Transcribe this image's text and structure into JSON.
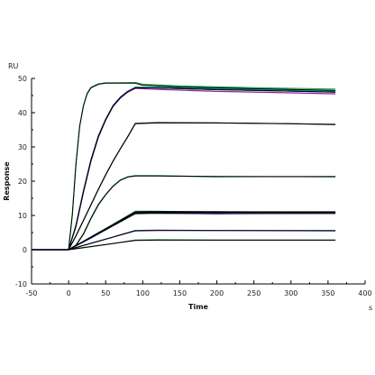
{
  "chart_data": {
    "type": "line",
    "title": "",
    "xlabel": "Time",
    "ylabel": "Response",
    "x_unit": "s",
    "y_unit": "RU",
    "xlim": [
      -50,
      400
    ],
    "ylim": [
      -10,
      50
    ],
    "x_ticks": [
      -50,
      0,
      50,
      100,
      150,
      200,
      250,
      300,
      350,
      400
    ],
    "y_ticks": [
      -10,
      0,
      10,
      20,
      30,
      40,
      50
    ],
    "grid": false,
    "association_end": 90,
    "series": [
      {
        "color": "#1a7a3a",
        "fit": [
          [
            -50,
            0
          ],
          [
            0,
            0
          ],
          [
            10,
            1.2
          ],
          [
            20,
            4.5
          ],
          [
            30,
            9
          ],
          [
            40,
            13
          ],
          [
            50,
            16
          ],
          [
            60,
            18.5
          ],
          [
            70,
            20.3
          ],
          [
            80,
            21.2
          ],
          [
            90,
            21.5
          ],
          [
            120,
            21.5
          ],
          [
            200,
            21.4
          ],
          [
            360,
            21.3
          ]
        ],
        "data": [
          [
            -50,
            0
          ],
          [
            0,
            0
          ],
          [
            10,
            1.4
          ],
          [
            20,
            4.7
          ],
          [
            30,
            9.2
          ],
          [
            40,
            13.2
          ],
          [
            50,
            16.1
          ],
          [
            60,
            18.6
          ],
          [
            70,
            20.4
          ],
          [
            80,
            21.3
          ],
          [
            90,
            21.6
          ],
          [
            120,
            21.6
          ],
          [
            200,
            21.3
          ],
          [
            360,
            21.4
          ]
        ]
      },
      {
        "color": "#1aa050",
        "fit": [
          [
            -50,
            0
          ],
          [
            0,
            0
          ],
          [
            5,
            10
          ],
          [
            10,
            25
          ],
          [
            15,
            36
          ],
          [
            20,
            42
          ],
          [
            25,
            45.5
          ],
          [
            30,
            47.2
          ],
          [
            40,
            48.3
          ],
          [
            50,
            48.6
          ],
          [
            90,
            48.6
          ],
          [
            100,
            48
          ],
          [
            150,
            47.5
          ],
          [
            250,
            47
          ],
          [
            360,
            46.5
          ]
        ],
        "data": [
          [
            -50,
            0
          ],
          [
            0,
            0
          ],
          [
            5,
            10.4
          ],
          [
            10,
            25.3
          ],
          [
            15,
            36.2
          ],
          [
            20,
            42.1
          ],
          [
            25,
            45.7
          ],
          [
            30,
            47.4
          ],
          [
            40,
            48.4
          ],
          [
            50,
            48.7
          ],
          [
            90,
            48.8
          ],
          [
            100,
            48.3
          ],
          [
            150,
            47.8
          ],
          [
            250,
            47.3
          ],
          [
            360,
            46.9
          ]
        ]
      },
      {
        "color": "#00a0a0",
        "fit": [
          [
            -50,
            0
          ],
          [
            0,
            0
          ],
          [
            10,
            7
          ],
          [
            20,
            17
          ],
          [
            30,
            26
          ],
          [
            40,
            33
          ],
          [
            50,
            38
          ],
          [
            60,
            42
          ],
          [
            70,
            44.5
          ],
          [
            80,
            46.2
          ],
          [
            90,
            47.3
          ],
          [
            120,
            47.2
          ],
          [
            200,
            46.7
          ],
          [
            300,
            46.3
          ],
          [
            360,
            46
          ]
        ],
        "data": [
          [
            -50,
            0
          ],
          [
            0,
            0
          ],
          [
            10,
            7.3
          ],
          [
            20,
            17.3
          ],
          [
            30,
            26.2
          ],
          [
            40,
            33.2
          ],
          [
            50,
            38.1
          ],
          [
            60,
            42.1
          ],
          [
            70,
            44.6
          ],
          [
            80,
            46.3
          ],
          [
            90,
            47.4
          ],
          [
            120,
            47.4
          ],
          [
            200,
            47.0
          ],
          [
            300,
            46.6
          ],
          [
            360,
            46.3
          ]
        ]
      },
      {
        "color": "#8b1fa8",
        "fit": [
          [
            -50,
            0
          ],
          [
            0,
            0
          ],
          [
            10,
            7
          ],
          [
            20,
            17
          ],
          [
            30,
            26
          ],
          [
            40,
            33
          ],
          [
            50,
            38
          ],
          [
            60,
            42
          ],
          [
            70,
            44.5
          ],
          [
            80,
            46.2
          ],
          [
            90,
            47.3
          ],
          [
            120,
            47.2
          ],
          [
            200,
            46.7
          ],
          [
            300,
            46.3
          ],
          [
            360,
            46
          ]
        ],
        "data": [
          [
            -50,
            0
          ],
          [
            0,
            0
          ],
          [
            10,
            6.8
          ],
          [
            20,
            16.8
          ],
          [
            30,
            25.7
          ],
          [
            40,
            32.7
          ],
          [
            50,
            37.8
          ],
          [
            60,
            41.8
          ],
          [
            70,
            44.3
          ],
          [
            80,
            46.0
          ],
          [
            90,
            47.1
          ],
          [
            120,
            46.8
          ],
          [
            200,
            46.2
          ],
          [
            300,
            45.8
          ],
          [
            360,
            45.5
          ]
        ]
      },
      {
        "color": "#2a2a2a",
        "fit": [
          [
            -50,
            0
          ],
          [
            0,
            0
          ],
          [
            10,
            4
          ],
          [
            20,
            8.5
          ],
          [
            30,
            13
          ],
          [
            40,
            17.5
          ],
          [
            50,
            21.8
          ],
          [
            60,
            25.8
          ],
          [
            70,
            29.5
          ],
          [
            80,
            33
          ],
          [
            90,
            36.8
          ],
          [
            120,
            37
          ],
          [
            200,
            37
          ],
          [
            300,
            36.8
          ],
          [
            360,
            36.6
          ]
        ],
        "data": [
          [
            -50,
            0
          ],
          [
            0,
            0
          ],
          [
            10,
            4.1
          ],
          [
            20,
            8.6
          ],
          [
            30,
            13.1
          ],
          [
            40,
            17.6
          ],
          [
            50,
            21.9
          ],
          [
            60,
            25.9
          ],
          [
            70,
            29.6
          ],
          [
            80,
            33.1
          ],
          [
            90,
            36.9
          ],
          [
            120,
            37.1
          ],
          [
            200,
            37.0
          ],
          [
            300,
            36.8
          ],
          [
            360,
            36.5
          ]
        ]
      },
      {
        "color": "#1a7a3a",
        "fit": [
          [
            -50,
            0
          ],
          [
            0,
            0
          ],
          [
            90,
            11
          ],
          [
            110,
            11.1
          ],
          [
            200,
            11.1
          ],
          [
            360,
            11
          ]
        ],
        "data": [
          [
            -50,
            0
          ],
          [
            0,
            0
          ],
          [
            30,
            3.7
          ],
          [
            60,
            7.4
          ],
          [
            90,
            11.2
          ],
          [
            110,
            11.2
          ],
          [
            200,
            11.0
          ],
          [
            360,
            11.1
          ]
        ]
      },
      {
        "color": "#1010cc",
        "fit": [
          [
            -50,
            0
          ],
          [
            0,
            0
          ],
          [
            90,
            10.5
          ],
          [
            110,
            10.6
          ],
          [
            200,
            10.6
          ],
          [
            360,
            10.6
          ]
        ],
        "data": [
          [
            -50,
            0
          ],
          [
            0,
            0
          ],
          [
            30,
            3.4
          ],
          [
            60,
            7.0
          ],
          [
            90,
            10.6
          ],
          [
            110,
            10.7
          ],
          [
            200,
            10.5
          ],
          [
            360,
            10.6
          ]
        ]
      },
      {
        "color": "#a01080",
        "fit": [
          [
            -50,
            0
          ],
          [
            0,
            0
          ],
          [
            90,
            10.8
          ],
          [
            110,
            10.9
          ],
          [
            200,
            10.9
          ],
          [
            360,
            10.9
          ]
        ],
        "data": [
          [
            -50,
            0
          ],
          [
            0,
            0
          ],
          [
            30,
            3.6
          ],
          [
            60,
            7.2
          ],
          [
            90,
            10.8
          ],
          [
            110,
            11.0
          ],
          [
            200,
            10.9
          ],
          [
            360,
            11.0
          ]
        ]
      },
      {
        "color": "#3030b0",
        "fit": [
          [
            -50,
            0
          ],
          [
            0,
            0
          ],
          [
            90,
            5.5
          ],
          [
            120,
            5.6
          ],
          [
            200,
            5.6
          ],
          [
            360,
            5.5
          ]
        ],
        "data": [
          [
            -50,
            0
          ],
          [
            0,
            0
          ],
          [
            30,
            1.9
          ],
          [
            60,
            3.7
          ],
          [
            90,
            5.6
          ],
          [
            120,
            5.7
          ],
          [
            200,
            5.6
          ],
          [
            360,
            5.6
          ]
        ]
      },
      {
        "color": "#1a7a3a",
        "fit": [
          [
            -50,
            0
          ],
          [
            0,
            0
          ],
          [
            90,
            2.7
          ],
          [
            120,
            2.8
          ],
          [
            200,
            2.8
          ],
          [
            360,
            2.8
          ]
        ],
        "data": [
          [
            -50,
            0
          ],
          [
            0,
            0
          ],
          [
            30,
            0.9
          ],
          [
            60,
            1.8
          ],
          [
            90,
            2.8
          ],
          [
            120,
            2.9
          ],
          [
            200,
            2.8
          ],
          [
            360,
            2.8
          ]
        ]
      }
    ]
  }
}
